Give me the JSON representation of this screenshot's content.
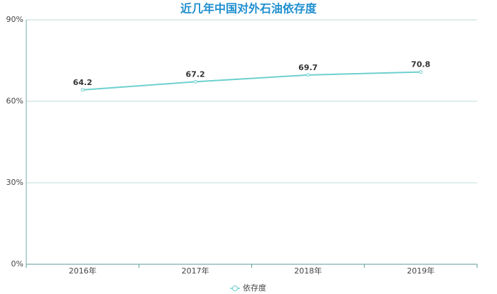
{
  "chart_data": {
    "type": "line",
    "title": "近几年中国对外石油依存度",
    "categories": [
      "2016年",
      "2017年",
      "2018年",
      "2019年"
    ],
    "series": [
      {
        "name": "依存度",
        "color": "#6dd0cf",
        "values": [
          64.2,
          67.2,
          69.7,
          70.8
        ]
      }
    ],
    "ylim": [
      0,
      90
    ],
    "yticks": [
      {
        "value": 0,
        "label": "0%"
      },
      {
        "value": 30,
        "label": "30%"
      },
      {
        "value": 60,
        "label": "60%"
      },
      {
        "value": 90,
        "label": "90%"
      }
    ],
    "grid": true,
    "legend": "bottom"
  }
}
